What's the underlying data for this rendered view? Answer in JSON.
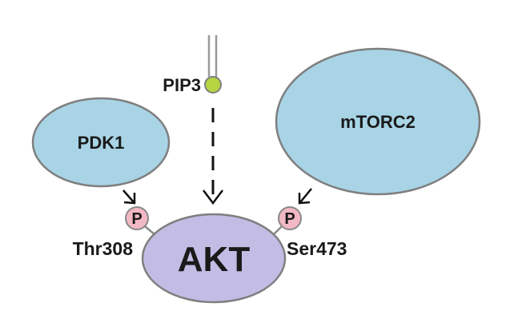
{
  "nodes": {
    "pdk1": "PDK1",
    "mtorc2": "mTORC2",
    "akt": "AKT",
    "pip3": "PIP3"
  },
  "sites": {
    "thr308": "Thr308",
    "ser473": "Ser473",
    "phospho_left": "P",
    "phospho_right": "P"
  },
  "colors": {
    "enzyme_fill": "#a8d4e6",
    "akt_fill": "#c3bde6",
    "phospho_fill": "#f2b8c4",
    "pip3_head": "#b5d440",
    "outline": "#7f7f7f"
  }
}
